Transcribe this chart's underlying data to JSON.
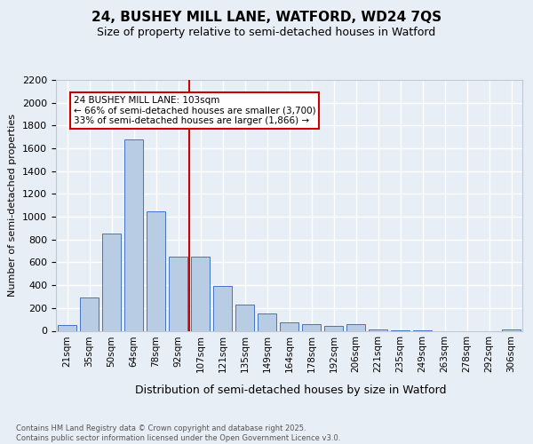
{
  "title1": "24, BUSHEY MILL LANE, WATFORD, WD24 7QS",
  "title2": "Size of property relative to semi-detached houses in Watford",
  "xlabel": "Distribution of semi-detached houses by size in Watford",
  "ylabel": "Number of semi-detached properties",
  "categories": [
    "21sqm",
    "35sqm",
    "50sqm",
    "64sqm",
    "78sqm",
    "92sqm",
    "107sqm",
    "121sqm",
    "135sqm",
    "149sqm",
    "164sqm",
    "178sqm",
    "192sqm",
    "206sqm",
    "221sqm",
    "235sqm",
    "249sqm",
    "263sqm",
    "278sqm",
    "292sqm",
    "306sqm"
  ],
  "values": [
    50,
    290,
    850,
    1680,
    1050,
    650,
    650,
    390,
    230,
    155,
    75,
    55,
    45,
    55,
    10,
    5,
    5,
    0,
    0,
    0,
    10
  ],
  "bar_color": "#b8cce4",
  "bar_edge_color": "#4472c4",
  "vline_position": 5.5,
  "vline_color": "#cc0000",
  "annotation_text": "24 BUSHEY MILL LANE: 103sqm\n← 66% of semi-detached houses are smaller (3,700)\n33% of semi-detached houses are larger (1,866) →",
  "annotation_box_color": "#ffffff",
  "annotation_box_edge_color": "#cc0000",
  "ylim": [
    0,
    2200
  ],
  "yticks": [
    0,
    200,
    400,
    600,
    800,
    1000,
    1200,
    1400,
    1600,
    1800,
    2000,
    2200
  ],
  "footnote": "Contains HM Land Registry data © Crown copyright and database right 2025.\nContains public sector information licensed under the Open Government Licence v3.0.",
  "bg_color": "#e8eef5",
  "grid_color": "#ffffff"
}
